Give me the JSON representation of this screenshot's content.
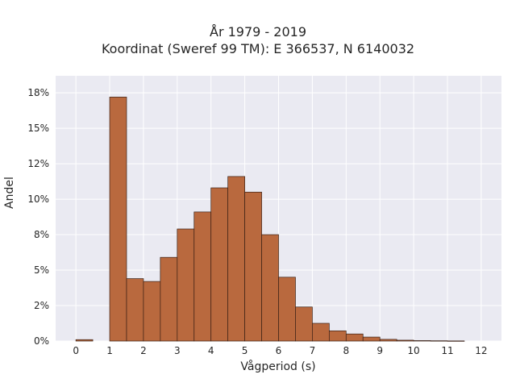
{
  "chart_data": {
    "type": "bar",
    "title": "År 1979 - 2019",
    "subtitle": "Koordinat (Sweref 99 TM): E 366537, N 6140032",
    "xlabel": "Vågperiod (s)",
    "ylabel": "Andel",
    "xlim": [
      -0.6,
      12.6
    ],
    "ylim": [
      0,
      0.187
    ],
    "xticks": [
      0,
      1,
      2,
      3,
      4,
      5,
      6,
      7,
      8,
      9,
      10,
      11,
      12
    ],
    "yticks": [
      {
        "value": 0,
        "label": "0%"
      },
      {
        "value": 0.025,
        "label": "2%"
      },
      {
        "value": 0.05,
        "label": "5%"
      },
      {
        "value": 0.075,
        "label": "8%"
      },
      {
        "value": 0.1,
        "label": "10%"
      },
      {
        "value": 0.125,
        "label": "12%"
      },
      {
        "value": 0.15,
        "label": "15%"
      },
      {
        "value": 0.175,
        "label": "18%"
      }
    ],
    "bin_width": 0.5,
    "bins": [
      {
        "x": 0.0,
        "value": 0.001
      },
      {
        "x": 1.0,
        "value": 0.172
      },
      {
        "x": 1.5,
        "value": 0.044
      },
      {
        "x": 2.0,
        "value": 0.042
      },
      {
        "x": 2.5,
        "value": 0.059
      },
      {
        "x": 3.0,
        "value": 0.079
      },
      {
        "x": 3.5,
        "value": 0.091
      },
      {
        "x": 4.0,
        "value": 0.108
      },
      {
        "x": 4.5,
        "value": 0.116
      },
      {
        "x": 5.0,
        "value": 0.105
      },
      {
        "x": 5.5,
        "value": 0.075
      },
      {
        "x": 6.0,
        "value": 0.045
      },
      {
        "x": 6.5,
        "value": 0.024
      },
      {
        "x": 7.0,
        "value": 0.0125
      },
      {
        "x": 7.5,
        "value": 0.0072
      },
      {
        "x": 8.0,
        "value": 0.005
      },
      {
        "x": 8.5,
        "value": 0.0028
      },
      {
        "x": 9.0,
        "value": 0.0012
      },
      {
        "x": 9.5,
        "value": 0.0006
      },
      {
        "x": 10.0,
        "value": 0.0003
      },
      {
        "x": 10.5,
        "value": 0.0002
      },
      {
        "x": 11.0,
        "value": 0.0001
      }
    ],
    "grid": true,
    "bar_color": "#b9693e",
    "edge_color": "#3a2015",
    "plot_background": "#eaeaf2"
  }
}
